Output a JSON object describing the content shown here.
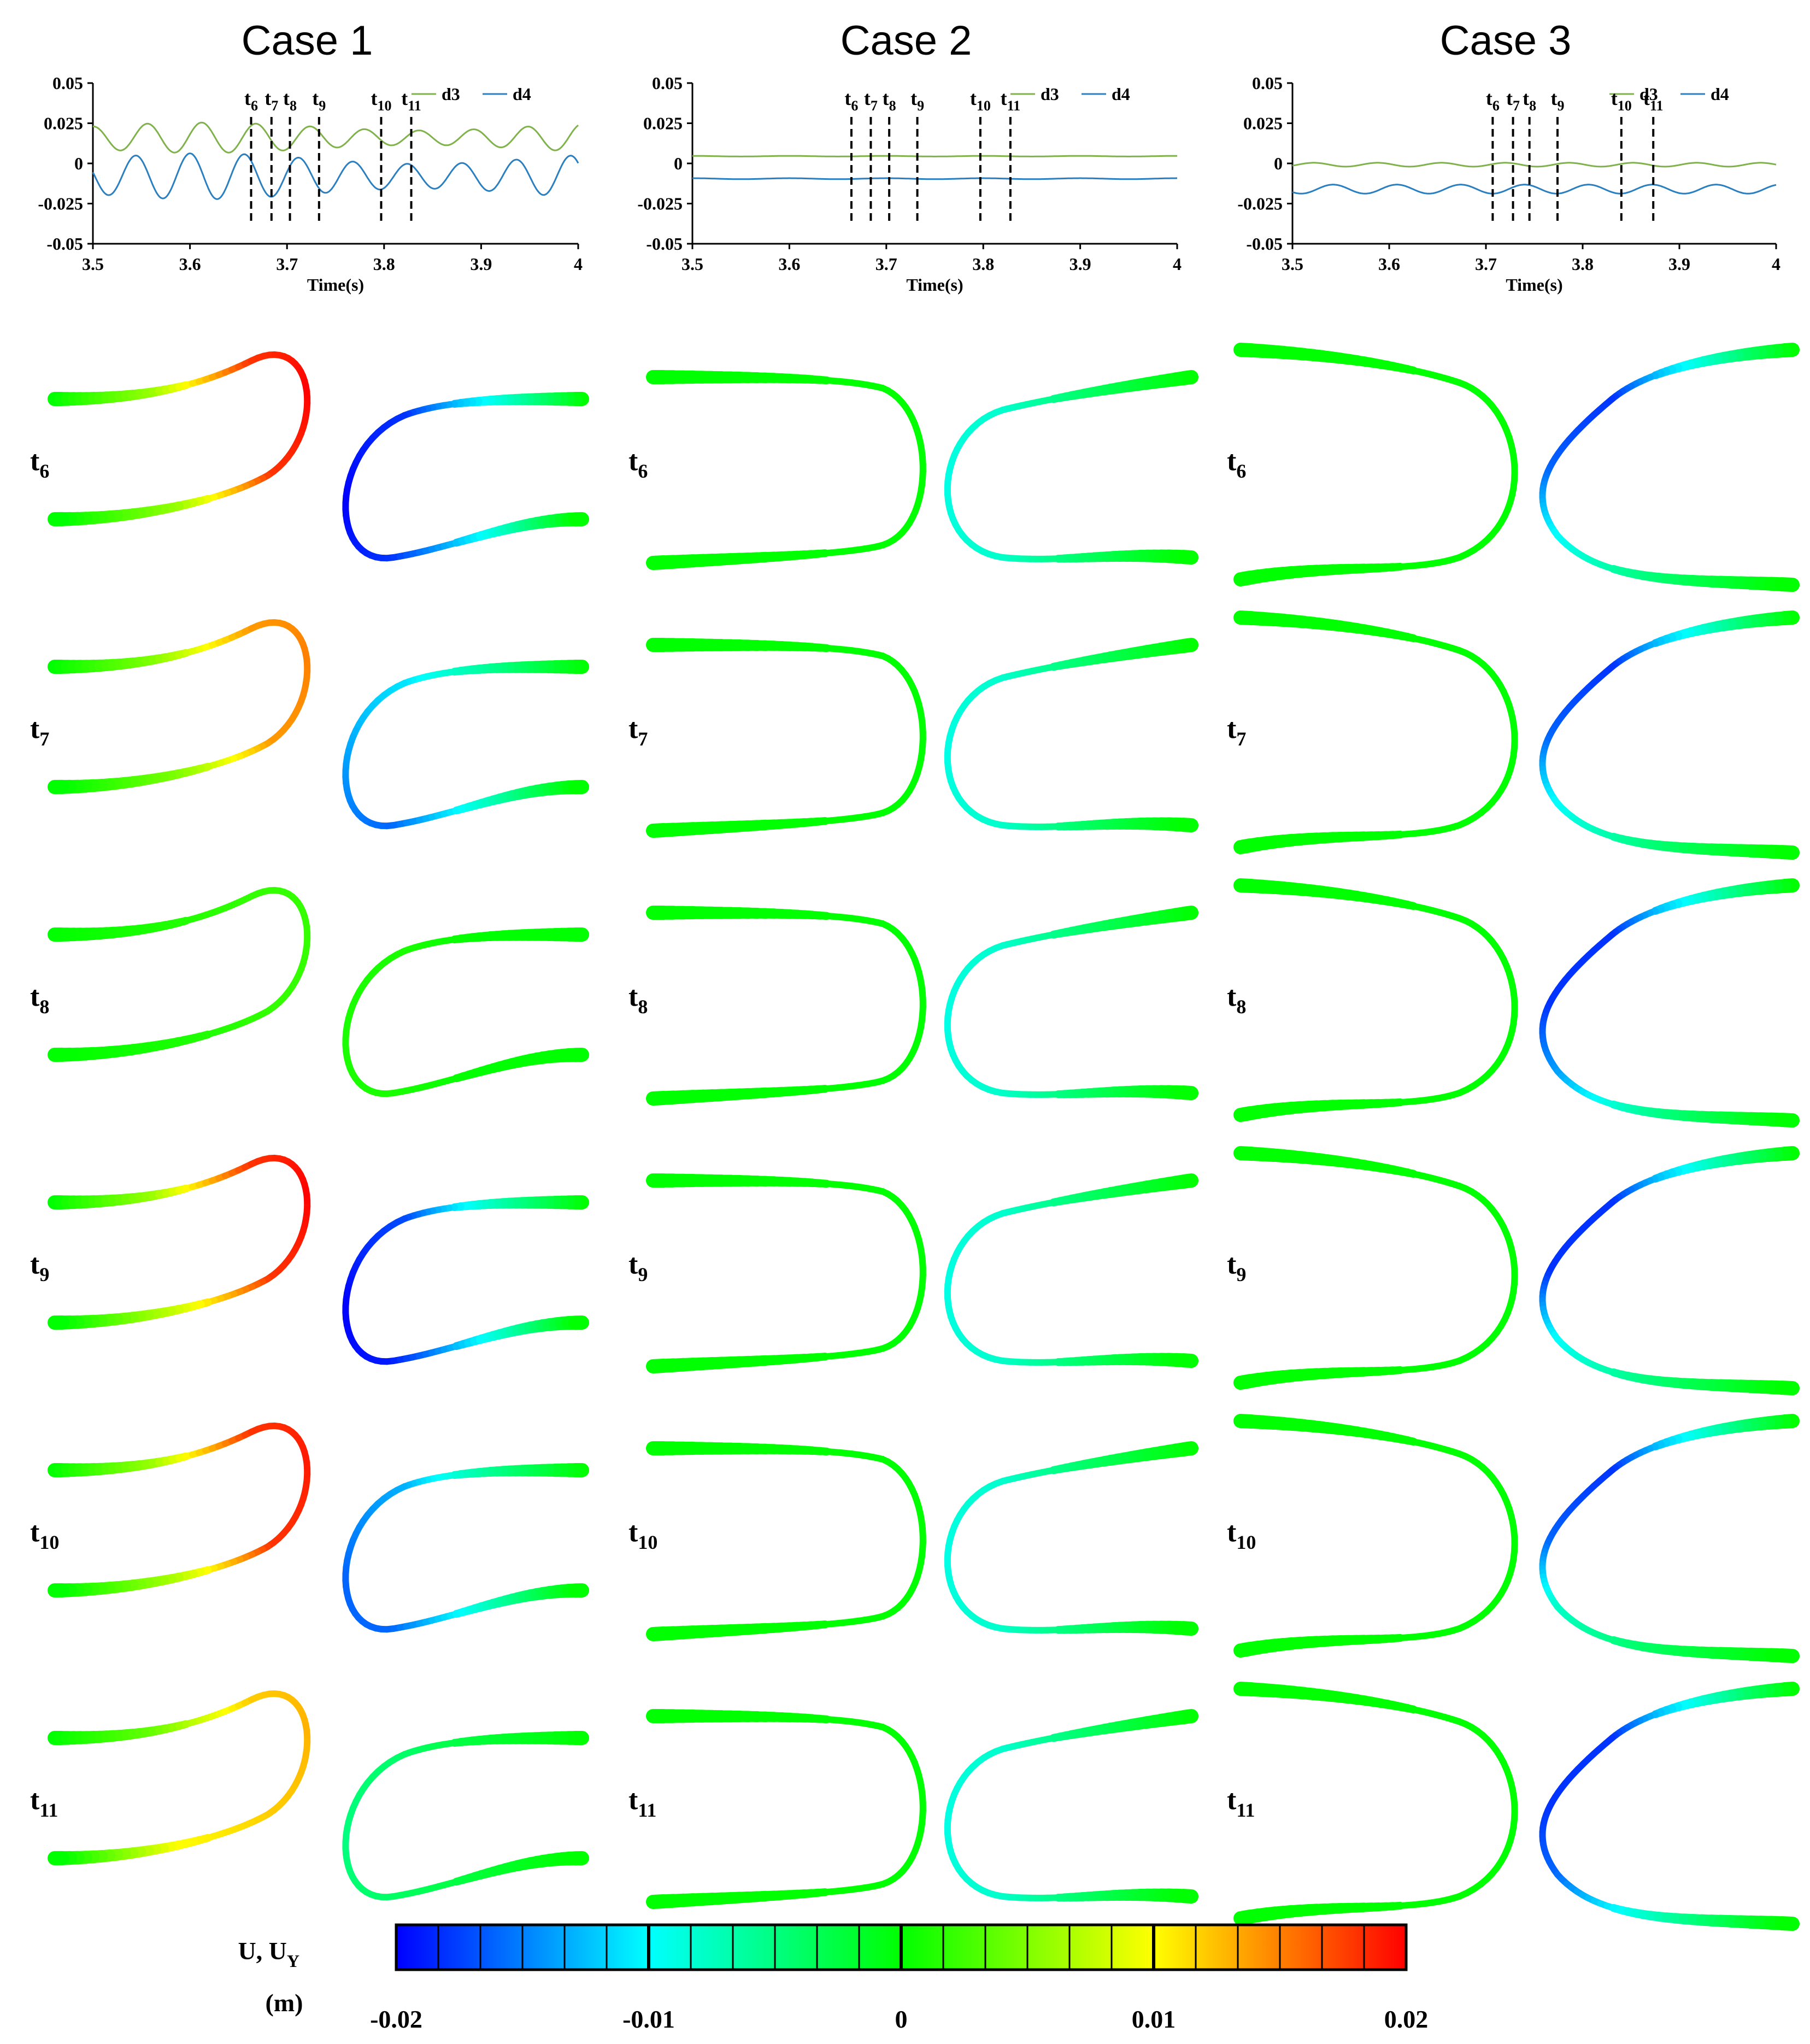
{
  "figure": {
    "case_titles": [
      "Case 1",
      "Case 2",
      "Case 3"
    ],
    "row_labels": [
      {
        "base": "t",
        "sub": "6"
      },
      {
        "base": "t",
        "sub": "7"
      },
      {
        "base": "t",
        "sub": "8"
      },
      {
        "base": "t",
        "sub": "9"
      },
      {
        "base": "t",
        "sub": "10"
      },
      {
        "base": "t",
        "sub": "11"
      }
    ],
    "colorbar": {
      "label_line1": "U, U",
      "label_sub": "Y",
      "label_line2": "(m)",
      "tick_labels": [
        "-0.02",
        "-0.01",
        "0",
        "0.01",
        "0.02"
      ],
      "range": [
        -0.02,
        0.02
      ],
      "color_stops": [
        "#0000ff",
        "#00ffff",
        "#00ff00",
        "#ffff00",
        "#ff0000"
      ]
    },
    "colors": {
      "d3": "#7fb24a",
      "d4": "#2a7fc0",
      "beam_neutral": "#00e000"
    },
    "snapshots": [
      {
        "case": "Case 1",
        "rows": [
          {
            "left": [
              0.0,
              0.006,
              0.018,
              0.02,
              0.018,
              0.006,
              0.0
            ],
            "right": [
              0.0,
              -0.01,
              -0.018,
              -0.02,
              -0.018,
              -0.01,
              0.0
            ]
          },
          {
            "left": [
              0.0,
              0.005,
              0.014,
              0.015,
              0.014,
              0.005,
              0.0
            ],
            "right": [
              0.0,
              -0.006,
              -0.011,
              -0.014,
              -0.016,
              -0.008,
              0.0
            ]
          },
          {
            "left": [
              0.0,
              0.001,
              0.002,
              0.002,
              0.002,
              0.001,
              0.0
            ],
            "right": [
              0.0,
              0.0,
              0.001,
              0.001,
              0.001,
              0.0,
              0.0
            ]
          },
          {
            "left": [
              0.0,
              0.006,
              0.018,
              0.02,
              0.018,
              0.008,
              0.0
            ],
            "right": [
              0.0,
              -0.008,
              -0.017,
              -0.02,
              -0.019,
              -0.01,
              0.0
            ]
          },
          {
            "left": [
              0.0,
              0.006,
              0.018,
              0.019,
              0.018,
              0.007,
              0.0
            ],
            "right": [
              0.0,
              -0.006,
              -0.013,
              -0.016,
              -0.016,
              -0.008,
              0.0
            ]
          },
          {
            "left": [
              0.0,
              0.004,
              0.012,
              0.013,
              0.012,
              0.01,
              0.0
            ],
            "right": [
              0.0,
              -0.002,
              -0.004,
              -0.005,
              -0.004,
              -0.002,
              0.0
            ]
          }
        ]
      },
      {
        "case": "Case 2",
        "rows": [
          {
            "left": [
              0.0,
              0.0,
              0.0,
              0.0,
              0.0,
              0.0,
              0.0
            ],
            "right": [
              0.0,
              -0.004,
              -0.008,
              -0.009,
              -0.008,
              -0.004,
              0.0
            ]
          },
          {
            "left": [
              0.0,
              0.0,
              0.0,
              0.0,
              0.0,
              0.0,
              0.0
            ],
            "right": [
              0.0,
              -0.004,
              -0.008,
              -0.009,
              -0.008,
              -0.004,
              0.0
            ]
          },
          {
            "left": [
              0.0,
              0.0,
              0.0,
              0.0,
              0.0,
              0.0,
              0.0
            ],
            "right": [
              0.0,
              -0.004,
              -0.008,
              -0.009,
              -0.008,
              -0.004,
              0.0
            ]
          },
          {
            "left": [
              0.0,
              0.0,
              0.0,
              0.0,
              0.0,
              0.0,
              0.0
            ],
            "right": [
              0.0,
              -0.004,
              -0.008,
              -0.009,
              -0.008,
              -0.004,
              0.0
            ]
          },
          {
            "left": [
              0.0,
              0.0,
              0.0,
              0.0,
              0.0,
              0.0,
              0.0
            ],
            "right": [
              0.0,
              -0.004,
              -0.008,
              -0.009,
              -0.008,
              -0.004,
              0.0
            ]
          },
          {
            "left": [
              0.0,
              0.0,
              0.0,
              0.0,
              0.0,
              0.0,
              0.0
            ],
            "right": [
              0.0,
              -0.004,
              -0.008,
              -0.009,
              -0.008,
              -0.004,
              0.0
            ]
          }
        ]
      },
      {
        "case": "Case 3",
        "rows": [
          {
            "left": [
              0.0,
              0.0,
              0.0,
              0.0,
              0.0,
              0.0,
              0.0
            ],
            "right": [
              0.0,
              -0.01,
              -0.018,
              -0.016,
              -0.01,
              -0.005,
              0.0
            ]
          },
          {
            "left": [
              0.0,
              0.0,
              0.0,
              0.0,
              0.0,
              0.0,
              0.0
            ],
            "right": [
              0.0,
              -0.01,
              -0.018,
              -0.016,
              -0.01,
              -0.005,
              0.0
            ]
          },
          {
            "left": [
              0.0,
              0.0,
              0.0,
              0.0,
              0.0,
              0.0,
              0.0
            ],
            "right": [
              0.0,
              -0.01,
              -0.018,
              -0.018,
              -0.014,
              -0.006,
              0.0
            ]
          },
          {
            "left": [
              0.0,
              0.0,
              0.0,
              0.0,
              0.0,
              0.0,
              0.0
            ],
            "right": [
              0.0,
              -0.01,
              -0.018,
              -0.018,
              -0.01,
              -0.005,
              0.0
            ]
          },
          {
            "left": [
              0.0,
              0.0,
              0.0,
              0.0,
              0.0,
              0.0,
              0.0
            ],
            "right": [
              0.0,
              -0.01,
              -0.018,
              -0.016,
              -0.008,
              -0.004,
              0.0
            ]
          },
          {
            "left": [
              0.0,
              0.0,
              0.0,
              0.0,
              0.0,
              0.0,
              0.0
            ],
            "right": [
              0.0,
              -0.01,
              -0.018,
              -0.018,
              -0.016,
              -0.008,
              0.0
            ]
          }
        ]
      }
    ]
  },
  "chart_data": [
    {
      "type": "line",
      "title": "Case 1",
      "xlabel": "Time(s)",
      "ylabel": "",
      "xlim": [
        3.5,
        4.0
      ],
      "ylim": [
        -0.05,
        0.05
      ],
      "xticks": [
        "3.5",
        "3.6",
        "3.7",
        "3.8",
        "3.9",
        "4"
      ],
      "yticks": [
        "0.05",
        "0.025",
        "0",
        "-0.025",
        "-0.05"
      ],
      "legend": "top-right",
      "markers": [
        {
          "label": "t",
          "sub": "6",
          "x": 3.663
        },
        {
          "label": "t",
          "sub": "7",
          "x": 3.684
        },
        {
          "label": "t",
          "sub": "8",
          "x": 3.703
        },
        {
          "label": "t",
          "sub": "9",
          "x": 3.733
        },
        {
          "label": "t",
          "sub": "10",
          "x": 3.797
        },
        {
          "label": "t",
          "sub": "11",
          "x": 3.828
        }
      ],
      "series": [
        {
          "name": "d3",
          "mean": 0.016,
          "amp": 0.007,
          "period": 0.056,
          "phase": 3.668,
          "beat": 0.35,
          "beat_period": 0.45
        },
        {
          "name": "d4",
          "mean": -0.008,
          "amp": 0.011,
          "period": 0.056,
          "phase": 3.712,
          "beat": 0.3,
          "beat_period": 0.45
        }
      ]
    },
    {
      "type": "line",
      "title": "Case 2",
      "xlabel": "Time(s)",
      "ylabel": "",
      "xlim": [
        3.5,
        4.0
      ],
      "ylim": [
        -0.05,
        0.05
      ],
      "xticks": [
        "3.5",
        "3.6",
        "3.7",
        "3.8",
        "3.9",
        "4"
      ],
      "yticks": [
        "0.05",
        "0.025",
        "0",
        "-0.025",
        "-0.05"
      ],
      "legend": "top-right",
      "markers": [
        {
          "label": "t",
          "sub": "6",
          "x": 3.664
        },
        {
          "label": "t",
          "sub": "7",
          "x": 3.684
        },
        {
          "label": "t",
          "sub": "8",
          "x": 3.703
        },
        {
          "label": "t",
          "sub": "9",
          "x": 3.732
        },
        {
          "label": "t",
          "sub": "10",
          "x": 3.797
        },
        {
          "label": "t",
          "sub": "11",
          "x": 3.828
        }
      ],
      "series": [
        {
          "name": "d3",
          "mean": 0.0045,
          "amp": 0.0002,
          "period": 0.1,
          "phase": 3.5,
          "beat": 0,
          "beat_period": 1
        },
        {
          "name": "d4",
          "mean": -0.0095,
          "amp": 0.0003,
          "period": 0.1,
          "phase": 3.5,
          "beat": 0,
          "beat_period": 1
        }
      ]
    },
    {
      "type": "line",
      "title": "Case 3",
      "xlabel": "Time(s)",
      "ylabel": "",
      "xlim": [
        3.5,
        4.0
      ],
      "ylim": [
        -0.05,
        0.05
      ],
      "xticks": [
        "3.5",
        "3.6",
        "3.7",
        "3.8",
        "3.9",
        "4"
      ],
      "yticks": [
        "0.05",
        "0.025",
        "0",
        "-0.025",
        "-0.05"
      ],
      "legend": "top-right",
      "markers": [
        {
          "label": "t",
          "sub": "6",
          "x": 3.707
        },
        {
          "label": "t",
          "sub": "7",
          "x": 3.728
        },
        {
          "label": "t",
          "sub": "8",
          "x": 3.745
        },
        {
          "label": "t",
          "sub": "9",
          "x": 3.774
        },
        {
          "label": "t",
          "sub": "10",
          "x": 3.84
        },
        {
          "label": "t",
          "sub": "11",
          "x": 3.873
        }
      ],
      "series": [
        {
          "name": "d3",
          "mean": -0.0008,
          "amp": 0.0012,
          "period": 0.066,
          "phase": 3.72,
          "beat": 0,
          "beat_period": 1
        },
        {
          "name": "d4",
          "mean": -0.016,
          "amp": 0.0028,
          "period": 0.066,
          "phase": 3.74,
          "beat": 0,
          "beat_period": 1
        }
      ]
    }
  ]
}
